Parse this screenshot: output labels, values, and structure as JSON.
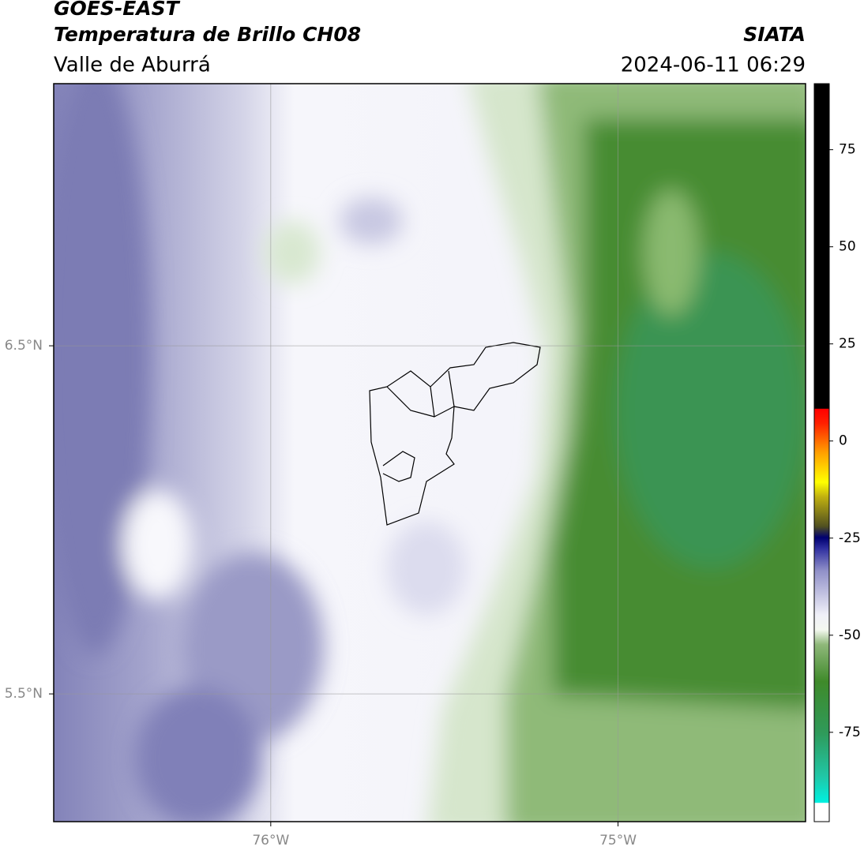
{
  "header": {
    "title": "GOES-EAST",
    "subtitle": "Temperatura de Brillo CH08",
    "region": "Valle de Aburrá",
    "source": "SIATA",
    "datetime": "2024-06-11 06:29"
  },
  "map": {
    "xlim": [
      -76.625,
      -74.46
    ],
    "ylim": [
      5.133,
      7.253
    ],
    "xticks": [
      {
        "value": -76,
        "label": "76°W"
      },
      {
        "value": -75,
        "label": "75°W"
      }
    ],
    "yticks": [
      {
        "value": 6.5,
        "label": "6.5°N"
      },
      {
        "value": 5.5,
        "label": "5.5°N"
      }
    ],
    "grid": true
  },
  "colorbar": {
    "lim": [
      -98,
      92
    ],
    "ticks": [
      75,
      50,
      25,
      0,
      -25,
      -50,
      -75
    ]
  }
}
